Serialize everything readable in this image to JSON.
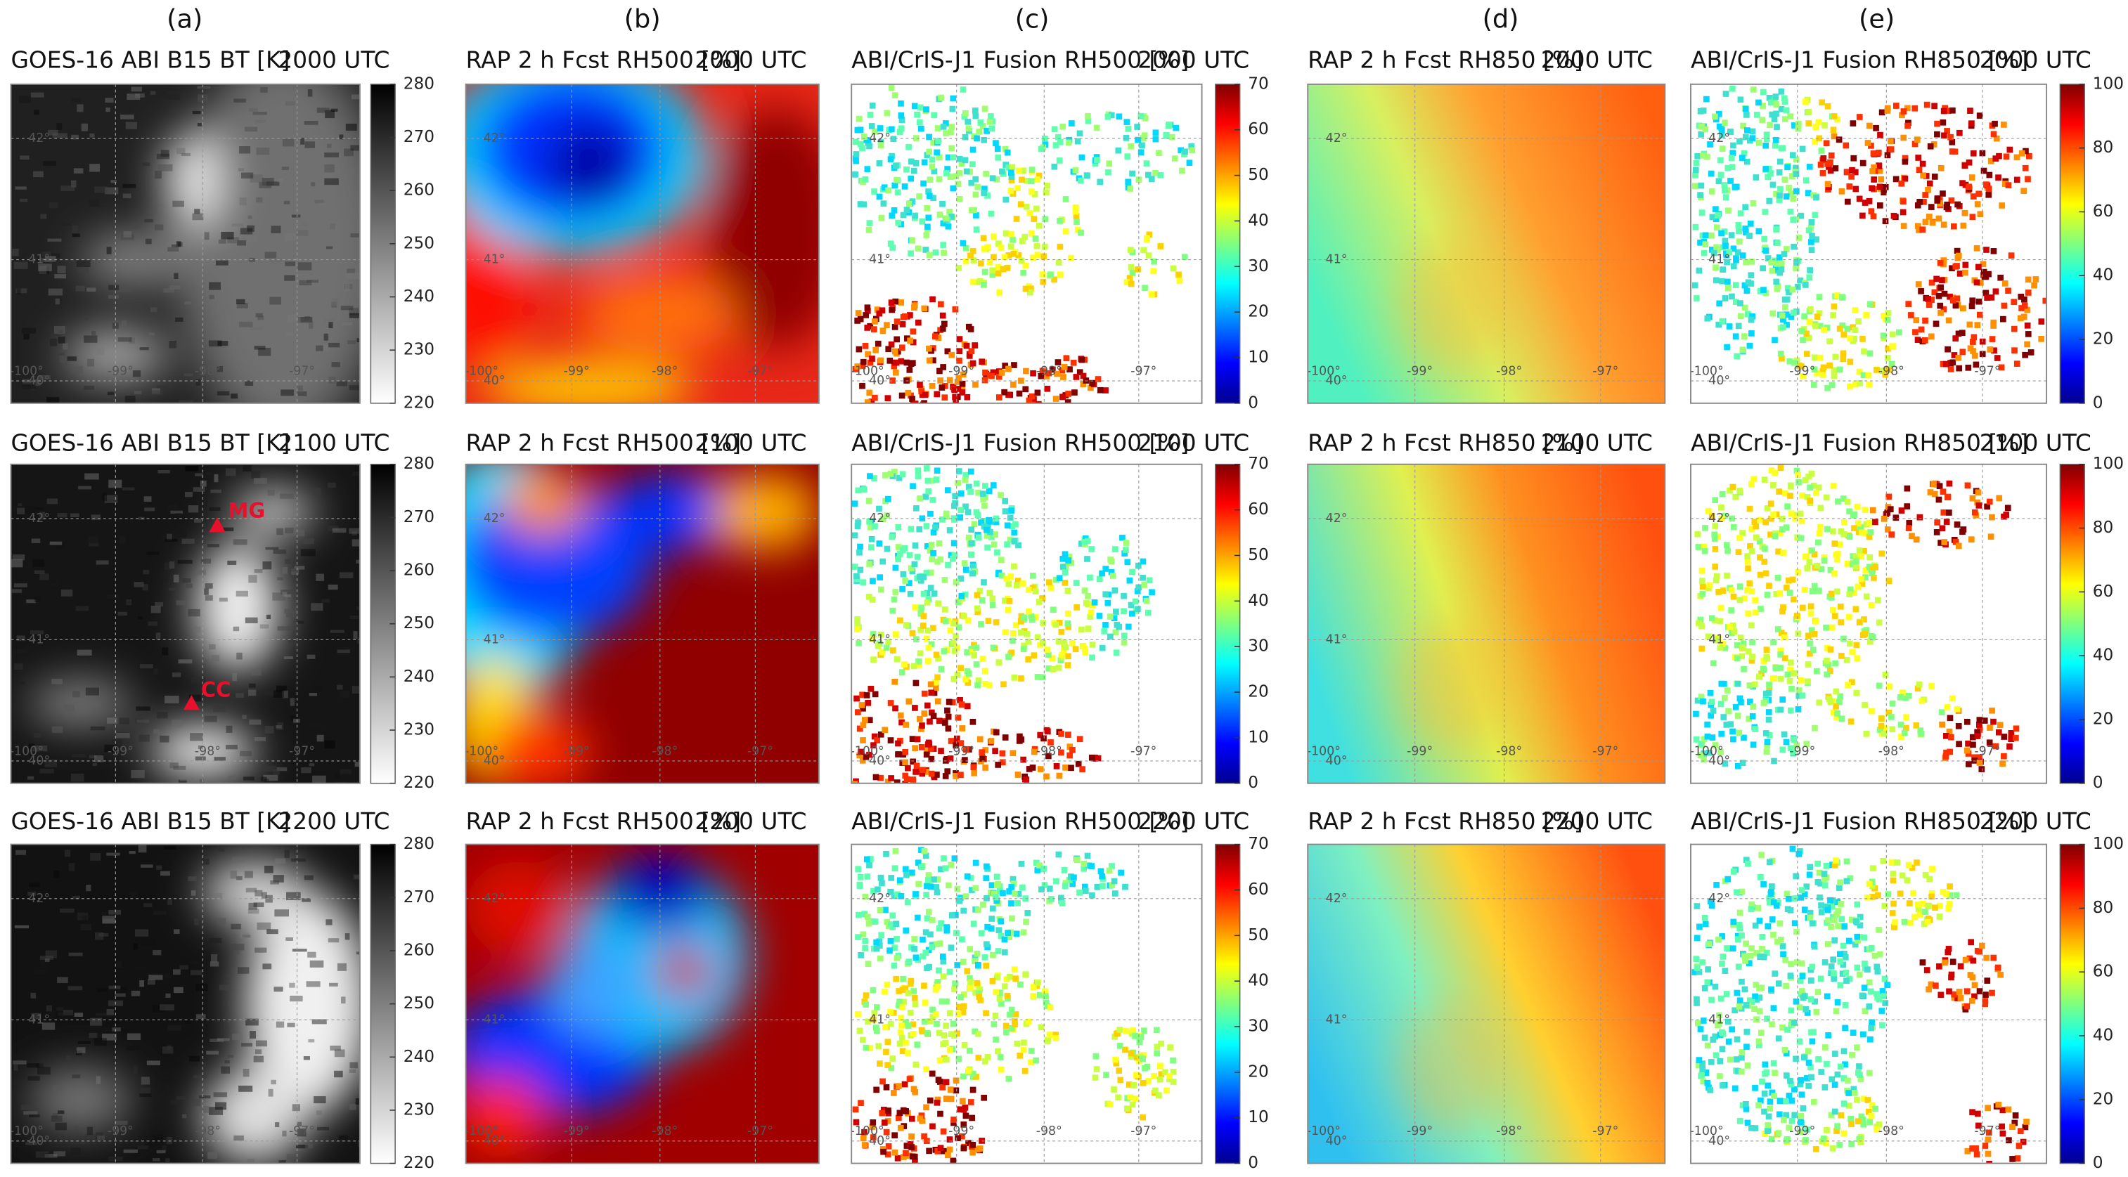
{
  "column_labels": [
    "(a)",
    "(b)",
    "(c)",
    "(d)",
    "(e)"
  ],
  "rows": [
    {
      "time": "2000 UTC"
    },
    {
      "time": "2100 UTC"
    },
    {
      "time": "2200 UTC"
    }
  ],
  "panel_titles": [
    "GOES-16 ABI B15 BT [K]",
    "RAP 2 h Fcst RH500 [%]",
    "ABI/CrIS-J1 Fusion RH500 [%]",
    "RAP 2 h Fcst RH850 [%]",
    "ABI/CrIS-J1 Fusion RH850 [%]"
  ],
  "colorbars": {
    "a": [
      "280",
      "270",
      "260",
      "250",
      "240",
      "230",
      "220"
    ],
    "c": [
      "70",
      "60",
      "50",
      "40",
      "30",
      "20",
      "10",
      "0"
    ],
    "e": [
      "100",
      "80",
      "60",
      "40",
      "20",
      "0"
    ]
  },
  "map_labels": {
    "lat": [
      "42°",
      "41°",
      "40°"
    ],
    "lon": [
      "-100°",
      "-99°",
      "-98°",
      "-97°"
    ]
  },
  "annotations": [
    "MG",
    "CC"
  ]
}
